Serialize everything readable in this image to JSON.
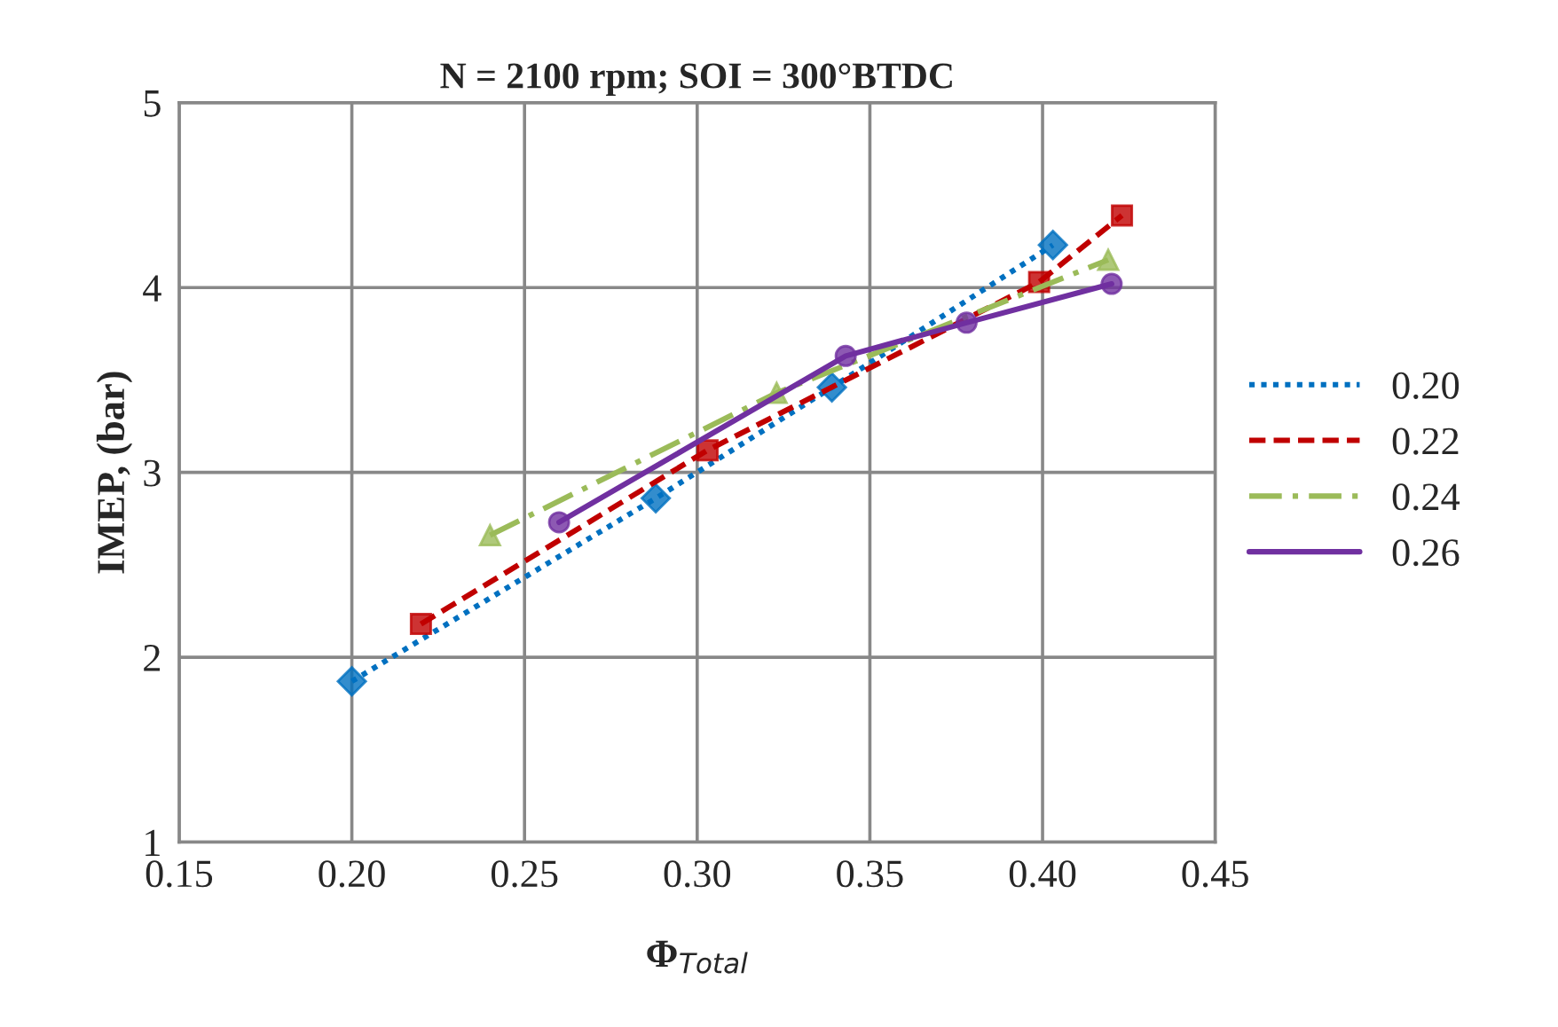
{
  "chart_data": {
    "type": "line",
    "title": "N = 2100 rpm; SOI = 300°BTDC",
    "xlabel": "Φ$_{Total}$",
    "ylabel": "IMEP, (bar)",
    "xlim": [
      0.15,
      0.45
    ],
    "xticks": [
      {
        "value": 0.15,
        "label": "0.15"
      },
      {
        "value": 0.2,
        "label": "0.20"
      },
      {
        "value": 0.25,
        "label": "0.25"
      },
      {
        "value": 0.3,
        "label": "0.30"
      },
      {
        "value": 0.35,
        "label": "0.35"
      },
      {
        "value": 0.4,
        "label": "0.40"
      },
      {
        "value": 0.45,
        "label": "0.45"
      }
    ],
    "ylim": [
      1,
      5
    ],
    "yticks": [
      1,
      2,
      3,
      4,
      5
    ],
    "grid": true,
    "legend": "right",
    "series": [
      {
        "name": "0.20",
        "color": "#0070c0",
        "marker": "diamond",
        "line_style": "dotted",
        "x": [
          0.2,
          0.288,
          0.339,
          0.403
        ],
        "values": [
          1.87,
          2.86,
          3.46,
          4.23
        ]
      },
      {
        "name": "0.22",
        "color": "#c00000",
        "marker": "square",
        "line_style": "dashed",
        "x": [
          0.22,
          0.303,
          0.399,
          0.423
        ],
        "values": [
          2.18,
          3.12,
          4.03,
          4.39
        ]
      },
      {
        "name": "0.24",
        "color": "#9bbb59",
        "marker": "triangle",
        "line_style": "dashdot",
        "x": [
          0.24,
          0.323,
          0.419
        ],
        "values": [
          2.66,
          3.43,
          4.15
        ]
      },
      {
        "name": "0.26",
        "color": "#7030a0",
        "marker": "circle",
        "line_style": "solid",
        "x": [
          0.26,
          0.343,
          0.378,
          0.42
        ],
        "values": [
          2.73,
          3.63,
          3.81,
          4.02
        ]
      }
    ]
  }
}
